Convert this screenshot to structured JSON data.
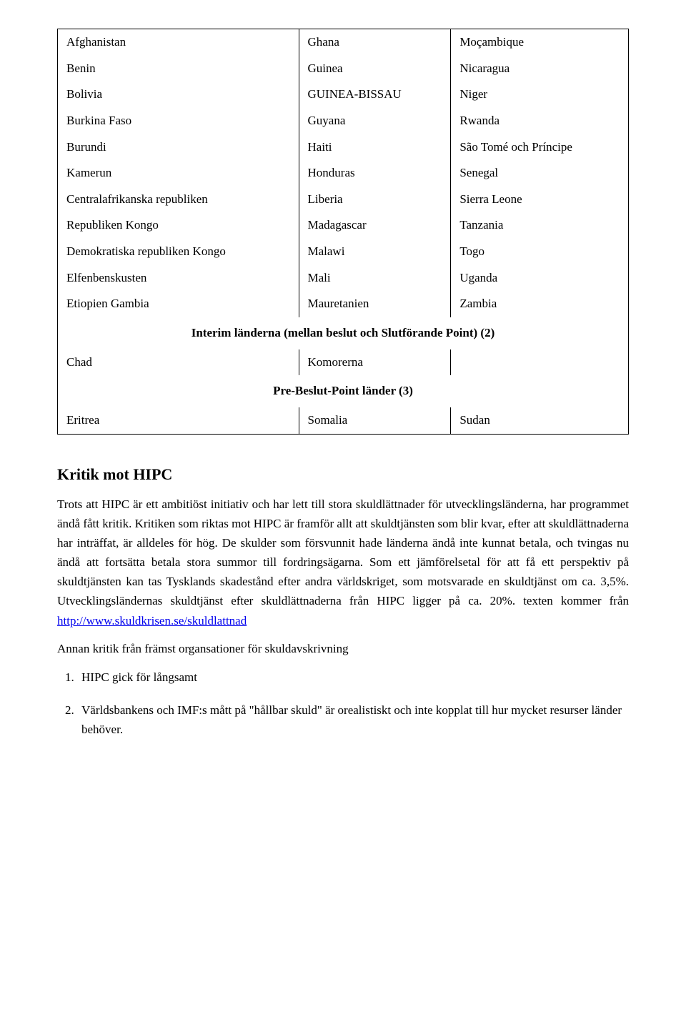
{
  "table": {
    "group1": [
      [
        "Afghanistan",
        "Ghana",
        "Moçambique"
      ],
      [
        "Benin",
        "Guinea",
        "Nicaragua"
      ],
      [
        "Bolivia",
        "GUINEA-BISSAU",
        "Niger"
      ],
      [
        "Burkina Faso",
        "Guyana",
        "Rwanda"
      ],
      [
        "Burundi",
        "Haiti",
        "São Tomé och Príncipe"
      ],
      [
        "Kamerun",
        "Honduras",
        "Senegal"
      ],
      [
        "Centralafrikanska republiken",
        "Liberia",
        "Sierra Leone"
      ],
      [
        "Republiken Kongo",
        "Madagascar",
        "Tanzania"
      ],
      [
        "Demokratiska republiken Kongo",
        "Malawi",
        "Togo"
      ],
      [
        "Elfenbenskusten",
        "Mali",
        "Uganda"
      ],
      [
        "Etiopien Gambia",
        "Mauretanien",
        "Zambia"
      ]
    ],
    "section2_title": "Interim länderna (mellan beslut och Slutförande Point) (2)",
    "group2": [
      [
        "Chad",
        "Komorerna",
        ""
      ]
    ],
    "section3_title": "Pre-Beslut-Point länder (3)",
    "group3": [
      [
        "Eritrea",
        "Somalia",
        "Sudan"
      ]
    ]
  },
  "article": {
    "heading": "Kritik mot HIPC",
    "paragraph_part1": "Trots att HIPC är ett ambitiöst initiativ och har lett till stora skuldlättnader för utvecklingsländerna, har programmet ändå fått kritik. Kritiken som riktas mot HIPC är framför allt att skuldtjänsten som blir kvar, efter att skuldlättnaderna har inträffat, är alldeles för hög. De skulder som försvunnit hade länderna ändå inte kunnat betala, och tvingas nu ändå att fortsätta betala stora summor till fordringsägarna. Som ett jämförelsetal för att få ett perspektiv på skuldtjänsten kan tas Tysklands skadestånd efter andra världskriget, som motsvarade en skuldtjänst om ca. 3,5%. Utvecklingsländernas skuldtjänst efter skuldlättnaderna från HIPC ligger på ca. 20%. texten kommer från ",
    "link_text": "http://www.skuldkrisen.se/skuldlattnad",
    "sub_paragraph": "Annan kritik från främst organsationer för skuldavskrivning",
    "list": [
      "HIPC gick för långsamt",
      "Världsbankens och IMF:s mått på \"hållbar skuld\" är orealistiskt och inte kopplat till hur mycket resurser länder behöver."
    ]
  }
}
